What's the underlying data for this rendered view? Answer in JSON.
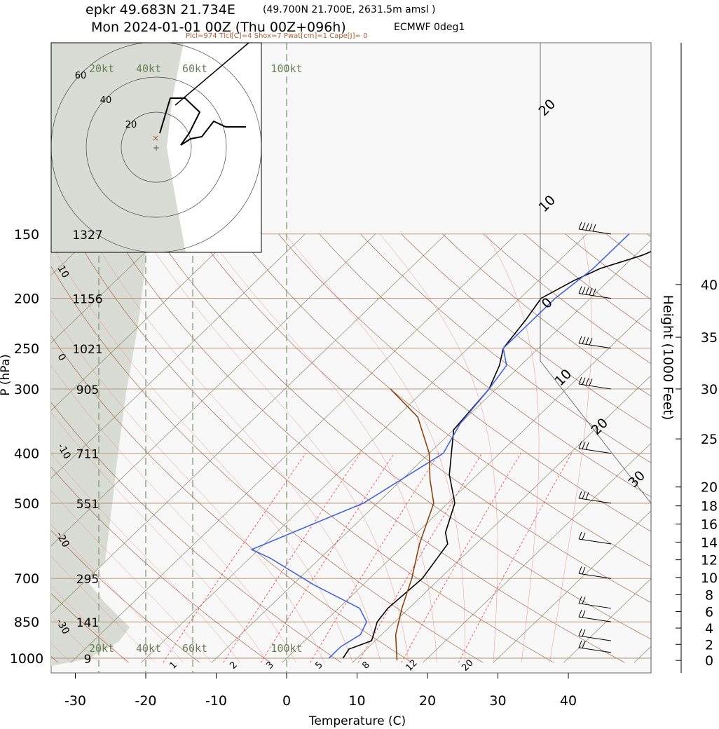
{
  "chart_data": {
    "type": "skew-t",
    "title_line1": "epkr 49.683N 21.734E",
    "title_line1_small": "(49.700N 21.700E, 2631.5m amsl )",
    "title_line2": "Mon 2024-01-01 00Z (Thu 00Z+096h)",
    "model": "ECMWF 0deg1",
    "indices": "Plcl=974 Tlcl[C]=4 Shox=7 Pwat[cm]=1 Cape[J]= 0",
    "xlabel": "Temperature (C)",
    "ylabel": "P (hPa)",
    "y2label": "Height (1000 Feet)",
    "xlim": [
      -34,
      46
    ],
    "plim": [
      1020,
      150
    ],
    "x_ticks": [
      "-30",
      "-20",
      "-10",
      "0",
      "10",
      "20",
      "30",
      "40"
    ],
    "pressure_levels": [
      {
        "p": 150,
        "label": "150",
        "height_m": "1327"
      },
      {
        "p": 200,
        "label": "200",
        "height_m": "1156"
      },
      {
        "p": 250,
        "label": "250",
        "height_m": "1021"
      },
      {
        "p": 300,
        "label": "300",
        "height_m": "905"
      },
      {
        "p": 400,
        "label": "400",
        "height_m": "711"
      },
      {
        "p": 500,
        "label": "500",
        "height_m": "551"
      },
      {
        "p": 700,
        "label": "700",
        "height_m": "295"
      },
      {
        "p": 850,
        "label": "850",
        "height_m": "141"
      },
      {
        "p": 1000,
        "label": "1000",
        "height_m": "9"
      }
    ],
    "height_ticks": [
      {
        "label": "0",
        "p": 1010
      },
      {
        "label": "2",
        "p": 940
      },
      {
        "label": "4",
        "p": 874
      },
      {
        "label": "6",
        "p": 812
      },
      {
        "label": "8",
        "p": 753
      },
      {
        "label": "10",
        "p": 697
      },
      {
        "label": "12",
        "p": 644
      },
      {
        "label": "14",
        "p": 595
      },
      {
        "label": "16",
        "p": 549
      },
      {
        "label": "18",
        "p": 506
      },
      {
        "label": "20",
        "p": 465
      },
      {
        "label": "25",
        "p": 375
      },
      {
        "label": "30",
        "p": 300
      },
      {
        "label": "35",
        "p": 238
      },
      {
        "label": "40",
        "p": 188
      }
    ],
    "wind_speed_labels": [
      "20kt",
      "40kt",
      "60kt",
      "100kt"
    ],
    "mixing_ratio_labels": [
      "1",
      "2",
      "3",
      "5",
      "8",
      "12",
      "20"
    ],
    "dry_adiabat_labels": [
      "10",
      "0",
      "-10",
      "-20",
      "-30"
    ],
    "moist_adiabat_labels": [
      "20",
      "10",
      "0",
      "10",
      "20",
      "30"
    ],
    "hodograph_ring_labels": [
      "20",
      "40",
      "60"
    ],
    "series": [
      {
        "role": "temperature",
        "color": "#000000",
        "points": [
          [
            8,
            1000
          ],
          [
            7.5,
            960
          ],
          [
            9.5,
            925
          ],
          [
            7.5,
            850
          ],
          [
            7,
            800
          ],
          [
            7.5,
            700
          ],
          [
            6,
            600
          ],
          [
            4,
            570
          ],
          [
            1,
            500
          ],
          [
            -4,
            440
          ],
          [
            -10,
            360
          ],
          [
            -11,
            300
          ],
          [
            -13,
            270
          ],
          [
            -15,
            250
          ],
          [
            -16,
            220
          ],
          [
            -17,
            200
          ],
          [
            -15,
            185
          ],
          [
            -13,
            175
          ],
          [
            -9,
            165
          ],
          [
            -5,
            150
          ]
        ]
      },
      {
        "role": "dewpoint",
        "color": "#4466dd",
        "points": [
          [
            6,
            1000
          ],
          [
            6,
            950
          ],
          [
            7,
            900
          ],
          [
            6,
            850
          ],
          [
            3,
            800
          ],
          [
            -7,
            720
          ],
          [
            -17,
            640
          ],
          [
            -21,
            615
          ],
          [
            -12,
            500
          ],
          [
            -8,
            400
          ],
          [
            -10,
            350
          ],
          [
            -11,
            300
          ],
          [
            -12,
            270
          ],
          [
            -15,
            250
          ],
          [
            -15,
            200
          ],
          [
            -14,
            175
          ],
          [
            -14,
            150
          ]
        ]
      },
      {
        "role": "parcel",
        "color": "#8b4513",
        "points": [
          [
            16,
            1010
          ],
          [
            12,
            900
          ],
          [
            9,
            800
          ],
          [
            6,
            700
          ],
          [
            2,
            600
          ],
          [
            -2,
            500
          ],
          [
            -6,
            450
          ],
          [
            -10,
            400
          ],
          [
            -17,
            340
          ],
          [
            -25,
            300
          ]
        ]
      }
    ],
    "hodograph": {
      "rings_kt": [
        20,
        40,
        60
      ],
      "points": [
        [
          -4,
          3
        ],
        [
          -2,
          18
        ],
        [
          4,
          23
        ],
        [
          9,
          16
        ],
        [
          6,
          6
        ],
        [
          13,
          8
        ],
        [
          20,
          7
        ],
        [
          32,
          7
        ],
        [
          30,
          6
        ],
        [
          38,
          7
        ],
        [
          43,
          5
        ],
        [
          50,
          6
        ],
        [
          53,
          5
        ],
        [
          51,
          13
        ],
        [
          56,
          13
        ],
        [
          54,
          22
        ],
        [
          48,
          20
        ],
        [
          46,
          7
        ],
        [
          41,
          5
        ],
        [
          38,
          7
        ],
        [
          32,
          5
        ],
        [
          25,
          2
        ],
        [
          16,
          -3
        ],
        [
          6,
          -4
        ]
      ]
    },
    "wind_barbs": [
      {
        "p": 150,
        "dir": 270,
        "spd": 50
      },
      {
        "p": 200,
        "dir": 270,
        "spd": 50
      },
      {
        "p": 250,
        "dir": 280,
        "spd": 40
      },
      {
        "p": 300,
        "dir": 285,
        "spd": 35
      },
      {
        "p": 400,
        "dir": 290,
        "spd": 30
      },
      {
        "p": 500,
        "dir": 290,
        "spd": 25
      },
      {
        "p": 600,
        "dir": 300,
        "spd": 20
      },
      {
        "p": 700,
        "dir": 300,
        "spd": 15
      },
      {
        "p": 800,
        "dir": 300,
        "spd": 15
      },
      {
        "p": 850,
        "dir": 310,
        "spd": 15
      },
      {
        "p": 925,
        "dir": 320,
        "spd": 20
      },
      {
        "p": 975,
        "dir": 330,
        "spd": 15
      }
    ]
  }
}
